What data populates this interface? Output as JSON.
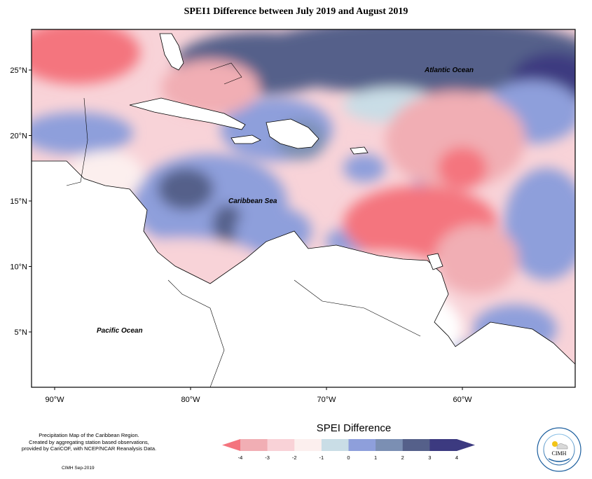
{
  "title": "SPEI1 Difference between July 2019 and August 2019",
  "map": {
    "lat_ticks": [
      {
        "label": "25°N",
        "lat": 25
      },
      {
        "label": "20°N",
        "lat": 20
      },
      {
        "label": "15°N",
        "lat": 15
      },
      {
        "label": "10°N",
        "lat": 10
      },
      {
        "label": "5°N",
        "lat": 5
      }
    ],
    "lon_ticks": [
      {
        "label": "90°W",
        "lon": -90
      },
      {
        "label": "80°W",
        "lon": -80
      },
      {
        "label": "70°W",
        "lon": -70
      },
      {
        "label": "60°W",
        "lon": -60
      }
    ],
    "labels": {
      "atlantic": "Atlantic Ocean",
      "caribbean": "Caribbean Sea",
      "pacific": "Pacific Ocean"
    }
  },
  "legend": {
    "title": "SPEI Difference",
    "ticks": [
      "-4",
      "-3",
      "-2",
      "-1",
      "0",
      "1",
      "2",
      "3",
      "4"
    ],
    "colors": [
      "#f4747e",
      "#f1aeb4",
      "#f9d2d7",
      "#fcefee",
      "#c9dde6",
      "#8e9fdb",
      "#7b8fb3",
      "#55608a",
      "#3c3a80"
    ]
  },
  "footer": {
    "line1": "Precipitation Map of the Caribbean Region.",
    "line2": "Created by aggregating station based observations,",
    "line3": "provided by CariCOF, with NCEP/NCAR Reanalysis Data.",
    "date": "CIMH Sep-2019"
  },
  "logo": {
    "abbr": "CIMH",
    "ring_text_top": "Caribbean Institute for",
    "ring_text_bottom": "Meteorology and Hydrology"
  }
}
